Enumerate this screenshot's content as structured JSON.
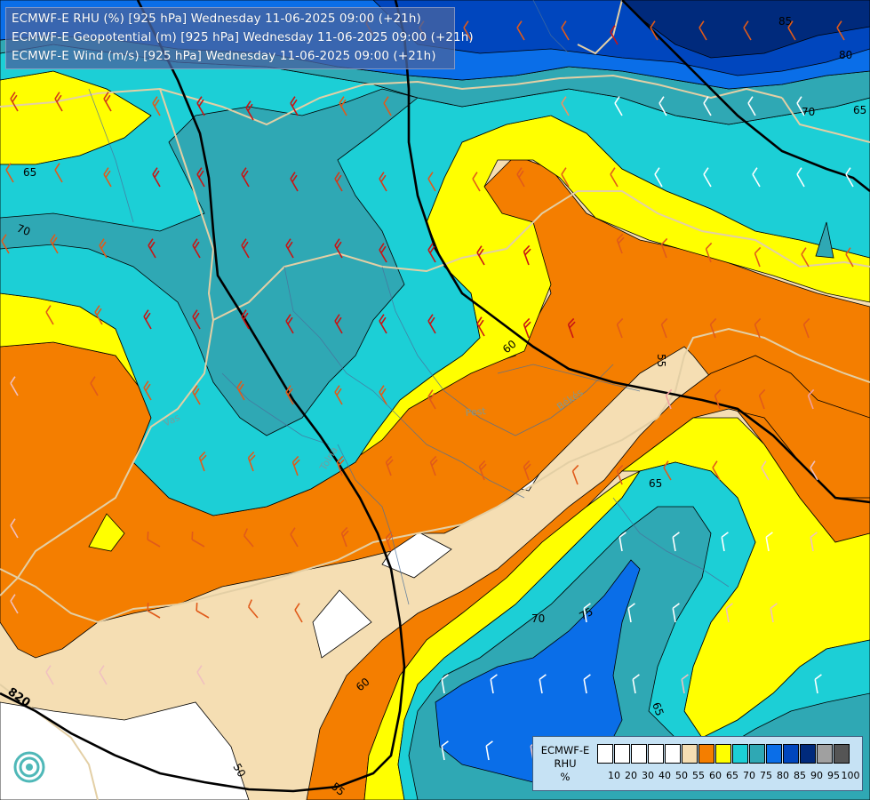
{
  "header": {
    "lines": [
      "ECMWF-E RHU (%) [925 hPa] Wednesday 11-06-2025 09:00 (+21h)",
      "ECMWF-E Geopotential (m) [925 hPa] Wednesday 11-06-2025 09:00 (+21h)",
      "ECMWF-E Wind (m/s) [925 hPa] Wednesday 11-06-2025 09:00 (+21h)"
    ]
  },
  "legend": {
    "model": "ECMWF-E",
    "field": "RHU",
    "unit": "%",
    "thresholds": [
      "10",
      "20",
      "30",
      "40",
      "50",
      "55",
      "60",
      "65",
      "70",
      "75",
      "80",
      "85",
      "90",
      "95",
      "100"
    ],
    "colors": [
      "#ffffff",
      "#ffffff",
      "#ffffff",
      "#ffffff",
      "#ffffff",
      "#f5deb3",
      "#f47e00",
      "#ffff00",
      "#1ccfd6",
      "#2fa8b4",
      "#0a6ee8",
      "#0046be",
      "#002a7c",
      "#a0a0a0",
      "#555555"
    ]
  },
  "map": {
    "contour_labels": {
      "rhu": [
        "65",
        "70",
        "85",
        "80",
        "70",
        "65",
        "65",
        "60",
        "55",
        "65",
        "70",
        "75",
        "65",
        "60",
        "60",
        "55",
        "50"
      ],
      "geopotential": [
        "820"
      ]
    },
    "place_labels": [
      "Vas",
      "Pest",
      "Békés",
      "Tolna"
    ],
    "colors": {
      "white": "#ffffff",
      "wheat": "#f5deb3",
      "orange": "#f47e00",
      "yellow": "#ffff00",
      "cyan": "#1ccfd6",
      "teal": "#2fa8b4",
      "blue": "#0a6ee8",
      "dark_blue": "#0046be",
      "navy": "#002a7c"
    }
  }
}
